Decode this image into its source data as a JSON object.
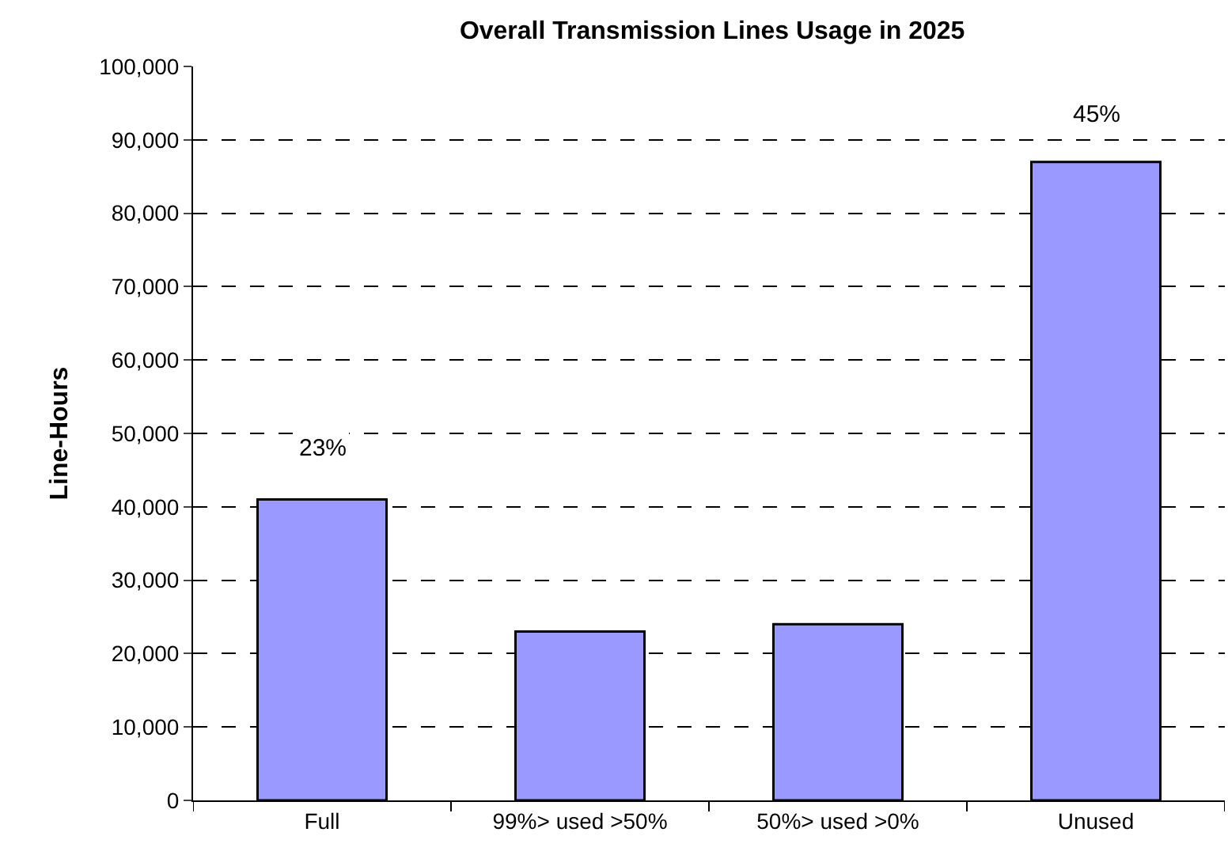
{
  "chart_data": {
    "type": "bar",
    "title": "Overall Transmission Lines Usage in 2025",
    "ylabel": "Line-Hours",
    "categories": [
      "Full",
      "99%> used >50%",
      "50%> used >0%",
      "Unused"
    ],
    "values": [
      41000,
      23000,
      24000,
      87000
    ],
    "annotations": [
      {
        "text": "23%",
        "x": "Full",
        "y": 48000
      },
      {
        "text": "45%",
        "x": "Unused",
        "y": 93500
      }
    ],
    "color": "#9999ff",
    "ylim": [
      0,
      100000
    ],
    "yticks": [
      {
        "value": 0,
        "label": "0"
      },
      {
        "value": 10000,
        "label": "10,000"
      },
      {
        "value": 20000,
        "label": "20,000"
      },
      {
        "value": 30000,
        "label": "30,000"
      },
      {
        "value": 40000,
        "label": "40,000"
      },
      {
        "value": 50000,
        "label": "50,000"
      },
      {
        "value": 60000,
        "label": "60,000"
      },
      {
        "value": 70000,
        "label": "70,000"
      },
      {
        "value": 80000,
        "label": "80,000"
      },
      {
        "value": 90000,
        "label": "90,000"
      },
      {
        "value": 100000,
        "label": "100,000"
      }
    ],
    "grid": "y",
    "legend": false
  }
}
